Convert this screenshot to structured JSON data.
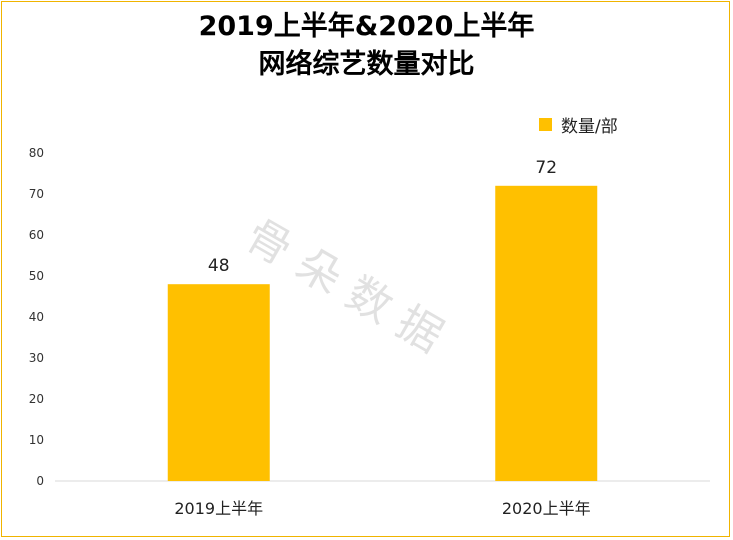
{
  "chart_data": {
    "type": "bar",
    "title_line1": "2019上半年&2020上半年",
    "title_line2": "网络综艺数量对比",
    "categories": [
      "2019上半年",
      "2020上半年"
    ],
    "series": [
      {
        "name": "数量/部",
        "values": [
          48,
          72
        ],
        "color": "#ffc000"
      }
    ],
    "ylim": [
      0,
      80
    ],
    "yticks": [
      0,
      10,
      20,
      30,
      40,
      50,
      60,
      70,
      80
    ],
    "grid": false,
    "legend_position": "top-right",
    "data_labels": true
  },
  "watermark": "骨朵数据",
  "colors": {
    "frame": "#f0b400",
    "bar": "#ffc000",
    "axis": "#d9d9d9"
  }
}
